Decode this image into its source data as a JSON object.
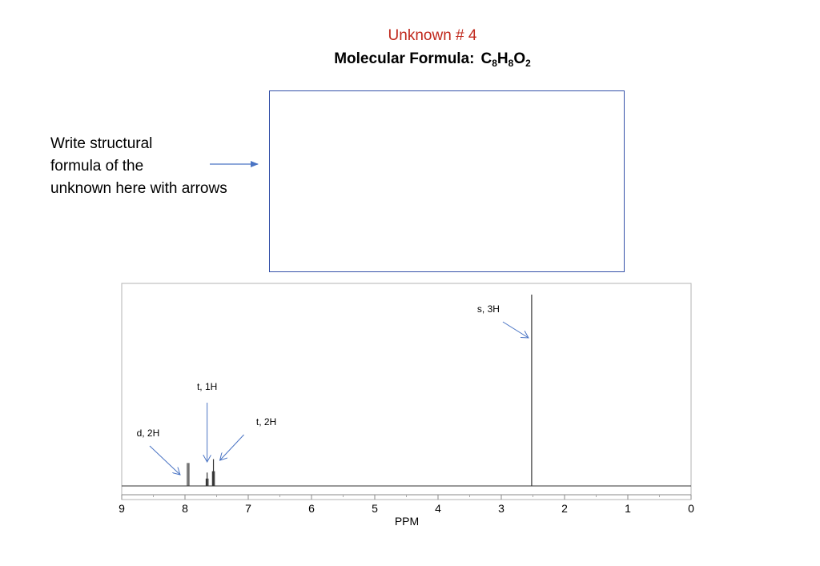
{
  "header": {
    "title": "Unknown # 4",
    "formula_label": "Molecular Formula:",
    "formula_parts": [
      {
        "el": "C",
        "n": "8"
      },
      {
        "el": "H",
        "n": "8"
      },
      {
        "el": "O",
        "n": "2"
      }
    ]
  },
  "instruction": {
    "lines": [
      "Write structural",
      "formula of the",
      "unknown here with arrows"
    ]
  },
  "colors": {
    "title": "#c0281c",
    "arrow": "#4a74c4",
    "box_border": "#3450a8",
    "spectrum": "#333333"
  },
  "chart_data": {
    "type": "line",
    "title": "",
    "xlabel": "PPM",
    "ylabel": "",
    "xlim": [
      9,
      0
    ],
    "x_reversed": true,
    "xticks": [
      "9",
      "8",
      "7",
      "6",
      "5",
      "4",
      "3",
      "2",
      "1",
      "0"
    ],
    "grid": false,
    "peaks": [
      {
        "ppm": 7.95,
        "relative_height": 0.12,
        "multiplicity": "d"
      },
      {
        "ppm": 7.65,
        "relative_height": 0.07,
        "multiplicity": "t"
      },
      {
        "ppm": 7.55,
        "relative_height": 0.14,
        "multiplicity": "t"
      },
      {
        "ppm": 2.52,
        "relative_height": 1.0,
        "multiplicity": "s"
      }
    ],
    "annotations": [
      {
        "text": "d, 2H",
        "ppm": 7.95
      },
      {
        "text": "t, 1H",
        "ppm": 7.65
      },
      {
        "text": "t, 2H",
        "ppm": 7.55
      },
      {
        "text": "s, 3H",
        "ppm": 2.52
      }
    ]
  }
}
